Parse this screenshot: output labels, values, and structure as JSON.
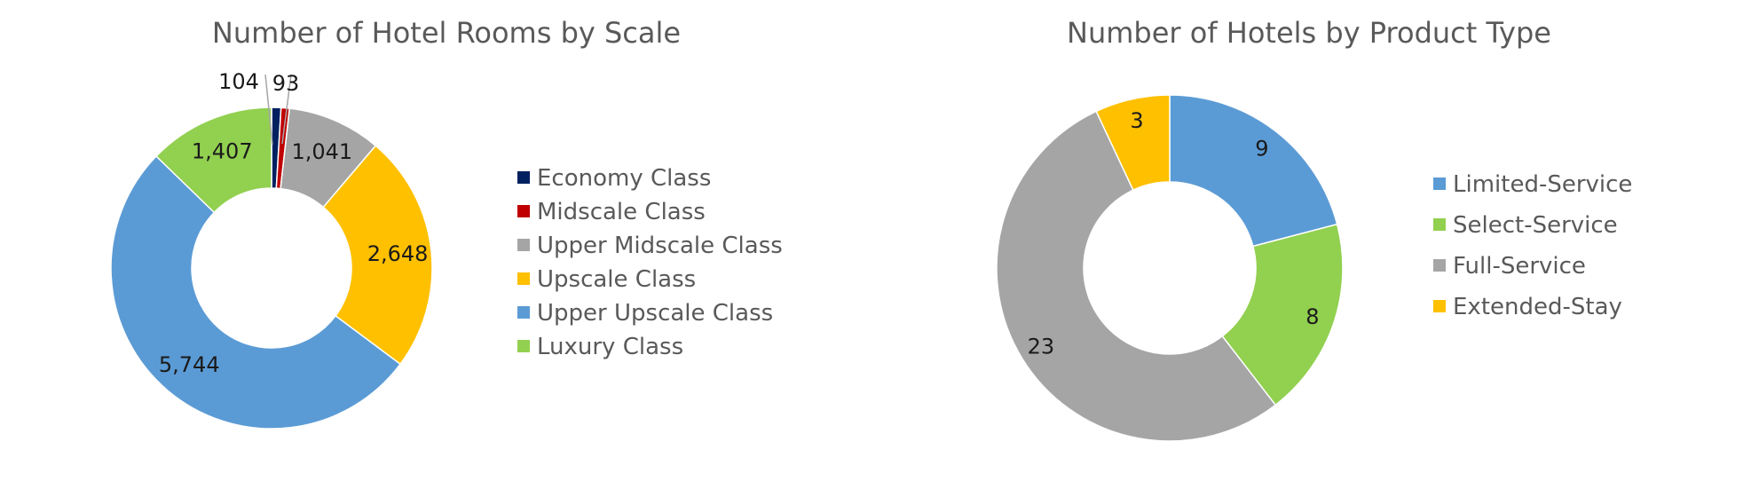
{
  "chart_data": [
    {
      "type": "pie",
      "subtype": "doughnut",
      "title": "Number of Hotel Rooms by Scale",
      "categories": [
        "Economy Class",
        "Midscale Class",
        "Upper Midscale Class",
        "Upscale Class",
        "Upper Upscale Class",
        "Luxury Class"
      ],
      "values": [
        104,
        93,
        1041,
        2648,
        5744,
        1407
      ],
      "labels": [
        "104",
        "93",
        "1,041",
        "2,648",
        "5,744",
        "1,407"
      ],
      "colors": [
        "#002060",
        "#C00000",
        "#A5A5A5",
        "#FFC000",
        "#5B9BD5",
        "#92D050"
      ],
      "legend_position": "right",
      "label_placement": [
        "outside",
        "outside",
        "inside",
        "inside",
        "inside",
        "inside"
      ]
    },
    {
      "type": "pie",
      "subtype": "doughnut",
      "title": "Number of Hotels by Product Type",
      "categories": [
        "Limited-Service",
        "Select-Service",
        "Full-Service",
        "Extended-Stay"
      ],
      "values": [
        9,
        8,
        23,
        3
      ],
      "labels": [
        "9",
        "8",
        "23",
        "3"
      ],
      "colors": [
        "#5B9BD5",
        "#92D050",
        "#A5A5A5",
        "#FFC000"
      ],
      "legend_position": "right",
      "label_placement": [
        "inside",
        "inside",
        "inside",
        "inside"
      ]
    }
  ]
}
